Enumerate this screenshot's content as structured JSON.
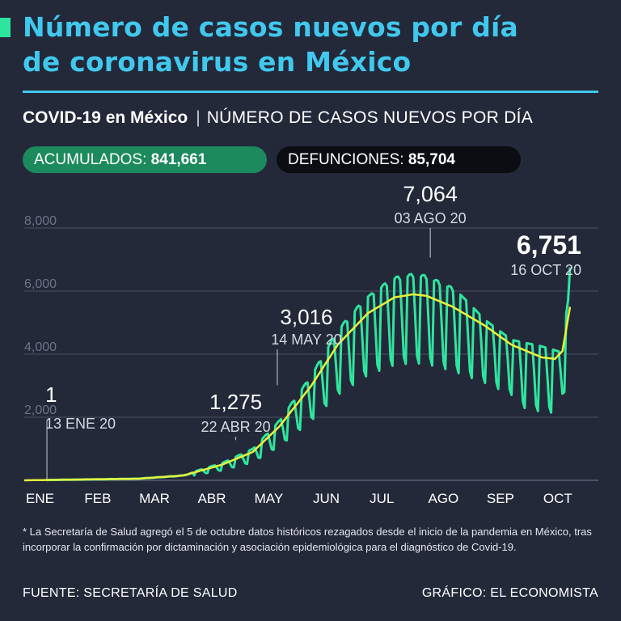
{
  "header": {
    "title_line1": "Número de casos nuevos por día",
    "title_line2": "de coronavirus en México",
    "subtitle_bold": "COVID-19 en México",
    "subtitle_separator": "|",
    "subtitle_rest": "NÚMERO DE CASOS NUEVOS POR DÍA"
  },
  "totals": {
    "accumulated_label": "ACUMULADOS:",
    "accumulated_value": "841,661",
    "deaths_label": "DEFUNCIONES:",
    "deaths_value": "85,704"
  },
  "chart_data": {
    "type": "line",
    "ylim": [
      0,
      8000
    ],
    "yticks": [
      "8,000",
      "6,000",
      "4,000",
      "2,000"
    ],
    "yticks_values": [
      8000,
      6000,
      4000,
      2000
    ],
    "x_range": [
      "2020-01-01",
      "2020-10-31"
    ],
    "month_labels": [
      "ENE",
      "FEB",
      "MAR",
      "ABR",
      "MAY",
      "JUN",
      "JUL",
      "AGO",
      "SEP",
      "OCT"
    ],
    "grid": true,
    "colors": {
      "daily": "#2ee59d",
      "trend": "#e8f23a",
      "axis": "#6b7081",
      "label": "#d6d9e0"
    },
    "series": [
      {
        "type": "daily",
        "points": [
          [
            "2020-01-13",
            1
          ],
          [
            "2020-02-15",
            25
          ],
          [
            "2020-03-10",
            80
          ],
          [
            "2020-03-24",
            220
          ],
          [
            "2020-04-01",
            360
          ],
          [
            "2020-04-10",
            500
          ],
          [
            "2020-04-22",
            1275
          ],
          [
            "2020-05-01",
            1500
          ],
          [
            "2020-05-14",
            3016
          ],
          [
            "2020-05-25",
            2500
          ],
          [
            "2020-06-05",
            3900
          ],
          [
            "2020-06-20",
            4900
          ],
          [
            "2020-07-01",
            5400
          ],
          [
            "2020-07-15",
            6100
          ],
          [
            "2020-07-25",
            6200
          ],
          [
            "2020-08-03",
            7064
          ],
          [
            "2020-08-15",
            5700
          ],
          [
            "2020-09-01",
            4700
          ],
          [
            "2020-09-15",
            4100
          ],
          [
            "2020-10-01",
            3900
          ],
          [
            "2020-10-10",
            3750
          ],
          [
            "2020-10-16",
            6751
          ]
        ]
      },
      {
        "type": "trend",
        "points": [
          [
            "2020-01-01",
            0
          ],
          [
            "2020-03-01",
            50
          ],
          [
            "2020-03-25",
            150
          ],
          [
            "2020-04-15",
            500
          ],
          [
            "2020-05-01",
            900
          ],
          [
            "2020-05-15",
            1700
          ],
          [
            "2020-06-01",
            3000
          ],
          [
            "2020-06-15",
            4300
          ],
          [
            "2020-07-01",
            5300
          ],
          [
            "2020-07-15",
            5800
          ],
          [
            "2020-07-25",
            5900
          ],
          [
            "2020-08-01",
            5850
          ],
          [
            "2020-08-15",
            5500
          ],
          [
            "2020-09-01",
            4900
          ],
          [
            "2020-09-15",
            4300
          ],
          [
            "2020-10-01",
            3900
          ],
          [
            "2020-10-08",
            3850
          ],
          [
            "2020-10-12",
            4100
          ],
          [
            "2020-10-16",
            5500
          ]
        ]
      }
    ],
    "annotations": [
      {
        "value": "1",
        "date": "13 ENE 20",
        "x": "2020-01-13",
        "y": 1
      },
      {
        "value": "1,275",
        "date": "22 ABR 20",
        "x": "2020-04-22",
        "y": 1275
      },
      {
        "value": "3,016",
        "date": "14 MAY 20",
        "x": "2020-05-14",
        "y": 3016
      },
      {
        "value": "7,064",
        "date": "03 AGO 20",
        "x": "2020-08-03",
        "y": 7064
      },
      {
        "value": "6,751",
        "date": "16 OCT 20",
        "x": "2020-10-16",
        "y": 6751
      }
    ]
  },
  "footnote": "* La Secretaría de Salud agregó el 5 de octubre datos históricos rezagados desde el inicio de la pandemia en México, tras incorporar la confirmación por dictaminación y asociación epidemiológica para el diagnóstico de Covid-19.",
  "footer": {
    "source": "FUENTE: SECRETARÍA DE SALUD",
    "credit": "GRÁFICO: EL ECONOMISTA"
  }
}
